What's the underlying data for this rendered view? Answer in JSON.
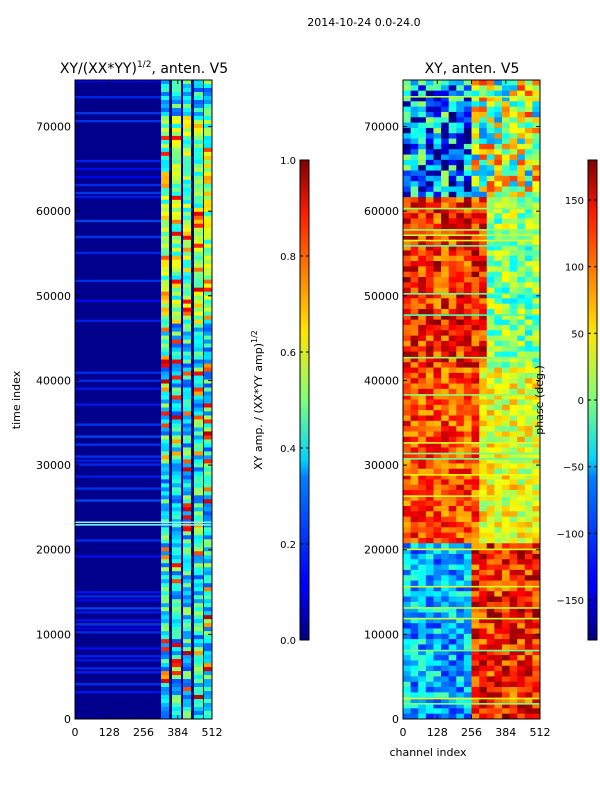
{
  "chart_data": {
    "suptitle": "2014-10-24 0.0-24.0",
    "type": "heatmap",
    "panels": [
      {
        "id": "amplitude",
        "title_main": "XY/(XX*YY)",
        "title_exp": "1/2",
        "title_rest": ", anten. V5",
        "xlabel": "",
        "ylabel": "time index",
        "x_ticks": [
          "0",
          "128",
          "256",
          "384",
          "512"
        ],
        "x_tick_values": [
          0,
          128,
          256,
          384,
          512
        ],
        "xlim": [
          0,
          512
        ],
        "y_ticks": [
          "0",
          "10000",
          "20000",
          "30000",
          "40000",
          "50000",
          "60000",
          "70000"
        ],
        "y_tick_values": [
          0,
          10000,
          20000,
          30000,
          40000,
          50000,
          60000,
          70000
        ],
        "ylim": [
          0,
          75500
        ],
        "colormap": "jet",
        "colorbar": {
          "label_main": "XY amp. / (XX*YY amp)",
          "label_exp": "1/2",
          "range": [
            0.0,
            1.0
          ],
          "ticks": [
            "0.0",
            "0.2",
            "0.4",
            "0.6",
            "0.8",
            "1.0"
          ],
          "tick_values": [
            0.0,
            0.2,
            0.4,
            0.6,
            0.8,
            1.0
          ]
        }
      },
      {
        "id": "phase",
        "title": "XY, anten. V5",
        "xlabel": "channel index",
        "ylabel": "",
        "x_ticks": [
          "0",
          "128",
          "256",
          "384",
          "512"
        ],
        "x_tick_values": [
          0,
          128,
          256,
          384,
          512
        ],
        "xlim": [
          0,
          512
        ],
        "y_ticks": [
          "0",
          "10000",
          "20000",
          "30000",
          "40000",
          "50000",
          "60000",
          "70000"
        ],
        "y_tick_values": [
          0,
          10000,
          20000,
          30000,
          40000,
          50000,
          60000,
          70000
        ],
        "ylim": [
          0,
          75500
        ],
        "colormap": "jet",
        "colorbar": {
          "label": "phase (deg.)",
          "range": [
            -180,
            180
          ],
          "ticks": [
            "−150",
            "−100",
            "−50",
            "0",
            "50",
            "100",
            "150"
          ],
          "tick_values": [
            -150,
            -100,
            -50,
            0,
            50,
            100,
            150
          ]
        }
      }
    ]
  }
}
